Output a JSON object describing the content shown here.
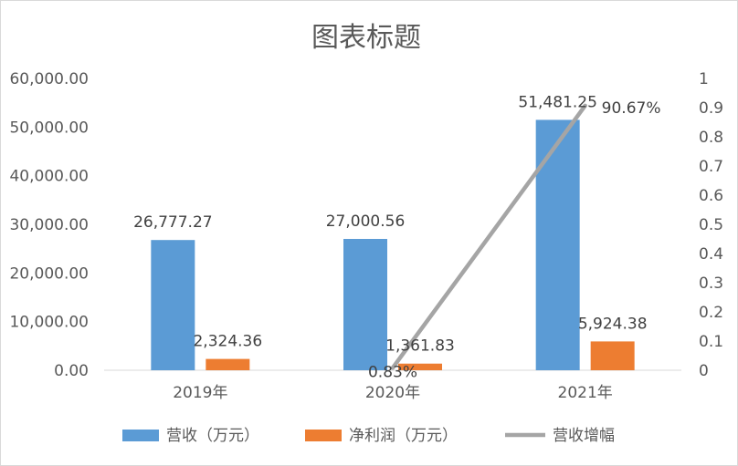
{
  "chart_data": {
    "type": "bar",
    "title": "图表标题",
    "categories": [
      "2019年",
      "2020年",
      "2021年"
    ],
    "series": [
      {
        "name": "营收（万元）",
        "type": "bar",
        "axis": "left",
        "color": "#5b9bd5",
        "values": [
          26777.27,
          27000.56,
          51481.25
        ],
        "labels": [
          "26,777.27",
          "27,000.56",
          "51,481.25"
        ]
      },
      {
        "name": "净利润（万元）",
        "type": "bar",
        "axis": "left",
        "color": "#ed7d31",
        "values": [
          2324.36,
          1361.83,
          5924.38
        ],
        "labels": [
          "2,324.36",
          "1,361.83",
          "5,924.38"
        ]
      },
      {
        "name": "营收增幅",
        "type": "line",
        "axis": "right",
        "color": "#a5a5a5",
        "values": [
          null,
          0.0083,
          0.9067
        ],
        "labels": [
          "",
          "0.83%",
          "90.67%"
        ]
      }
    ],
    "y_left": {
      "ylim": [
        0,
        60000
      ],
      "ticks": [
        0,
        10000,
        20000,
        30000,
        40000,
        50000,
        60000
      ],
      "tick_labels": [
        "0.00",
        "10,000.00",
        "20,000.00",
        "30,000.00",
        "40,000.00",
        "50,000.00",
        "60,000.00"
      ]
    },
    "y_right": {
      "ylim": [
        0,
        1
      ],
      "ticks": [
        0,
        0.1,
        0.2,
        0.3,
        0.4,
        0.5,
        0.6,
        0.7,
        0.8,
        0.9,
        1
      ],
      "tick_labels": [
        "0",
        "0.1",
        "0.2",
        "0.3",
        "0.4",
        "0.5",
        "0.6",
        "0.7",
        "0.8",
        "0.9",
        "1"
      ]
    },
    "grid": false,
    "legend": "bottom"
  }
}
